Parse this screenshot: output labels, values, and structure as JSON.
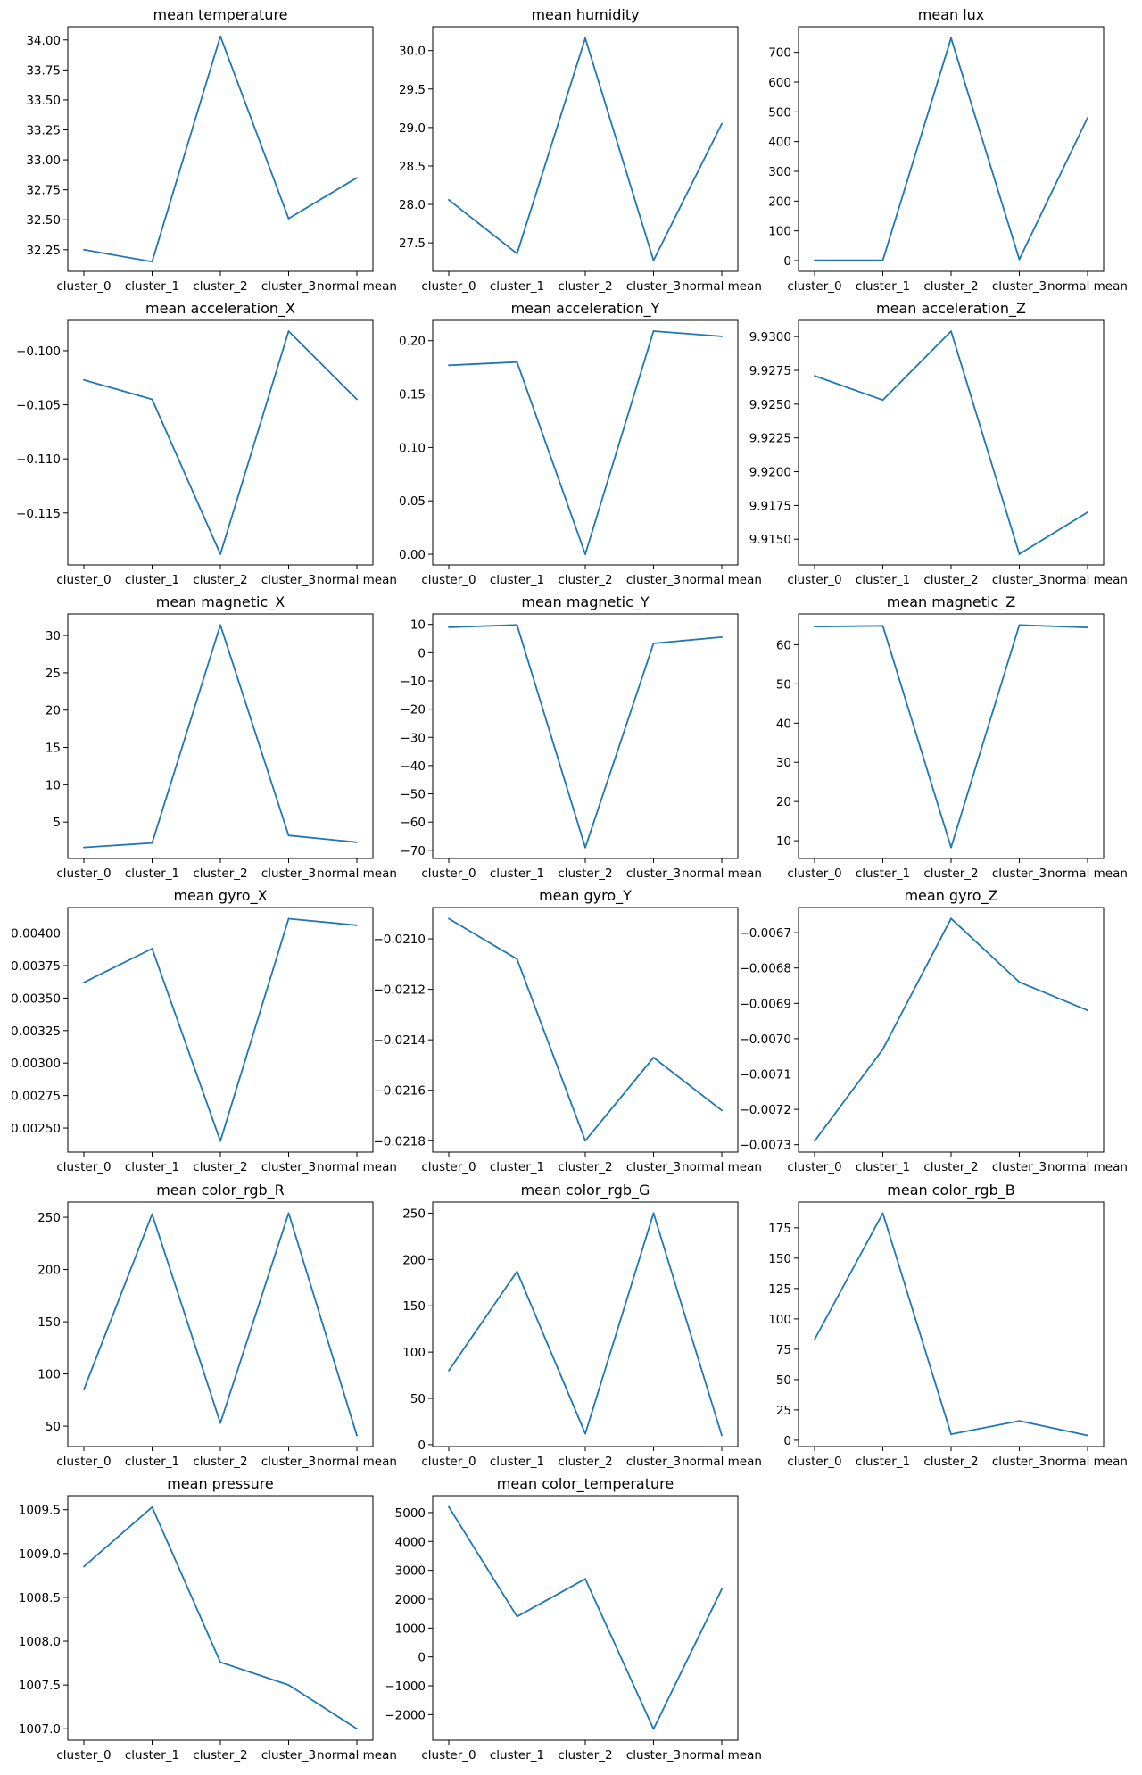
{
  "figure": {
    "line_color": "#1f77b4",
    "frame_color": "#000000",
    "background": "#ffffff"
  },
  "chart_data": [
    {
      "type": "line",
      "title": "mean temperature",
      "categories": [
        "cluster_0",
        "cluster_1",
        "cluster_2",
        "cluster_3",
        "normal mean"
      ],
      "values": [
        32.25,
        32.15,
        34.03,
        32.51,
        32.85
      ],
      "ylim": [
        32.07,
        34.11
      ],
      "yticks": [
        "32.25",
        "32.50",
        "32.75",
        "33.00",
        "33.25",
        "33.50",
        "33.75",
        "34.00"
      ],
      "xlabel": "",
      "ylabel": "",
      "grid": false
    },
    {
      "type": "line",
      "title": "mean humidity",
      "categories": [
        "cluster_0",
        "cluster_1",
        "cluster_2",
        "cluster_3",
        "normal mean"
      ],
      "values": [
        28.06,
        27.36,
        30.16,
        27.27,
        29.05
      ],
      "ylim": [
        27.13,
        30.31
      ],
      "yticks": [
        "27.5",
        "28.0",
        "28.5",
        "29.0",
        "29.5",
        "30.0"
      ],
      "xlabel": "",
      "ylabel": "",
      "grid": false
    },
    {
      "type": "line",
      "title": "mean lux",
      "categories": [
        "cluster_0",
        "cluster_1",
        "cluster_2",
        "cluster_3",
        "normal mean"
      ],
      "values": [
        1,
        1,
        748,
        4,
        480
      ],
      "ylim": [
        -36,
        786
      ],
      "yticks": [
        "0",
        "100",
        "200",
        "300",
        "400",
        "500",
        "600",
        "700"
      ],
      "xlabel": "",
      "ylabel": "",
      "grid": false
    },
    {
      "type": "line",
      "title": "mean acceleration_X",
      "categories": [
        "cluster_0",
        "cluster_1",
        "cluster_2",
        "cluster_3",
        "normal mean"
      ],
      "values": [
        -0.1027,
        -0.1045,
        -0.1188,
        -0.0982,
        -0.1045
      ],
      "ylim": [
        -0.1198,
        -0.0972
      ],
      "yticks": [
        "-0.100",
        "-0.105",
        "-0.110",
        "-0.115"
      ],
      "xlabel": "",
      "ylabel": "",
      "grid": false
    },
    {
      "type": "line",
      "title": "mean acceleration_Y",
      "categories": [
        "cluster_0",
        "cluster_1",
        "cluster_2",
        "cluster_3",
        "normal mean"
      ],
      "values": [
        0.177,
        0.18,
        0.0,
        0.209,
        0.204
      ],
      "ylim": [
        -0.01,
        0.219
      ],
      "yticks": [
        "0.00",
        "0.05",
        "0.10",
        "0.15",
        "0.20"
      ],
      "xlabel": "",
      "ylabel": "",
      "grid": false
    },
    {
      "type": "line",
      "title": "mean acceleration_Z",
      "categories": [
        "cluster_0",
        "cluster_1",
        "cluster_2",
        "cluster_3",
        "normal mean"
      ],
      "values": [
        9.9271,
        9.9253,
        9.9304,
        9.9139,
        9.917
      ],
      "ylim": [
        9.9131,
        9.9312
      ],
      "yticks": [
        "9.9150",
        "9.9175",
        "9.9200",
        "9.9225",
        "9.9250",
        "9.9275",
        "9.9300"
      ],
      "xlabel": "",
      "ylabel": "",
      "grid": false
    },
    {
      "type": "line",
      "title": "mean magnetic_X",
      "categories": [
        "cluster_0",
        "cluster_1",
        "cluster_2",
        "cluster_3",
        "normal mean"
      ],
      "values": [
        1.6,
        2.2,
        31.4,
        3.2,
        2.3
      ],
      "ylim": [
        0.12,
        32.88
      ],
      "yticks": [
        "5",
        "10",
        "15",
        "20",
        "25",
        "30"
      ],
      "xlabel": "",
      "ylabel": "",
      "grid": false
    },
    {
      "type": "line",
      "title": "mean magnetic_Y",
      "categories": [
        "cluster_0",
        "cluster_1",
        "cluster_2",
        "cluster_3",
        "normal mean"
      ],
      "values": [
        9,
        9.8,
        -69,
        3.3,
        5.5
      ],
      "ylim": [
        -72.9,
        13.7
      ],
      "yticks": [
        "10",
        "0",
        "-10",
        "-20",
        "-30",
        "-40",
        "-50",
        "-60",
        "-70"
      ],
      "xlabel": "",
      "ylabel": "",
      "grid": false
    },
    {
      "type": "line",
      "title": "mean magnetic_Z",
      "categories": [
        "cluster_0",
        "cluster_1",
        "cluster_2",
        "cluster_3",
        "normal mean"
      ],
      "values": [
        64.6,
        64.8,
        8.3,
        65,
        64.4
      ],
      "ylim": [
        5.47,
        67.83
      ],
      "yticks": [
        "10",
        "20",
        "30",
        "40",
        "50",
        "60"
      ],
      "xlabel": "",
      "ylabel": "",
      "grid": false
    },
    {
      "type": "line",
      "title": "mean gyro_X",
      "categories": [
        "cluster_0",
        "cluster_1",
        "cluster_2",
        "cluster_3",
        "normal mean"
      ],
      "values": [
        0.00362,
        0.00388,
        0.0024,
        0.00411,
        0.00406
      ],
      "ylim": [
        0.002315,
        0.004196
      ],
      "yticks": [
        "0.00400",
        "0.00375",
        "0.00350",
        "0.00325",
        "0.00300",
        "0.00275",
        "0.00250"
      ],
      "xlabel": "",
      "ylabel": "",
      "grid": false
    },
    {
      "type": "line",
      "title": "mean gyro_Y",
      "categories": [
        "cluster_0",
        "cluster_1",
        "cluster_2",
        "cluster_3",
        "normal mean"
      ],
      "values": [
        -0.02092,
        -0.02108,
        -0.0218,
        -0.02147,
        -0.02168
      ],
      "ylim": [
        -0.021845,
        -0.020876
      ],
      "yticks": [
        "-0.0210",
        "-0.0212",
        "-0.0214",
        "-0.0216",
        "-0.0218"
      ],
      "xlabel": "",
      "ylabel": "",
      "grid": false
    },
    {
      "type": "line",
      "title": "mean gyro_Z",
      "categories": [
        "cluster_0",
        "cluster_1",
        "cluster_2",
        "cluster_3",
        "normal mean"
      ],
      "values": [
        -0.00729,
        -0.00703,
        -0.00666,
        -0.00684,
        -0.00692
      ],
      "ylim": [
        -0.007321,
        -0.006629
      ],
      "yticks": [
        "-0.0067",
        "-0.0068",
        "-0.0069",
        "-0.0070",
        "-0.0071",
        "-0.0072",
        "-0.0073"
      ],
      "xlabel": "",
      "ylabel": "",
      "grid": false
    },
    {
      "type": "line",
      "title": "mean color_rgb_R",
      "categories": [
        "cluster_0",
        "cluster_1",
        "cluster_2",
        "cluster_3",
        "normal mean"
      ],
      "values": [
        85,
        253,
        53,
        254,
        41
      ],
      "ylim": [
        30.4,
        264.6
      ],
      "yticks": [
        "50",
        "100",
        "150",
        "200",
        "250"
      ],
      "xlabel": "",
      "ylabel": "",
      "grid": false
    },
    {
      "type": "line",
      "title": "mean color_rgb_G",
      "categories": [
        "cluster_0",
        "cluster_1",
        "cluster_2",
        "cluster_3",
        "normal mean"
      ],
      "values": [
        80,
        187,
        12,
        250,
        10
      ],
      "ylim": [
        -2,
        262
      ],
      "yticks": [
        "0",
        "50",
        "100",
        "150",
        "200",
        "250"
      ],
      "xlabel": "",
      "ylabel": "",
      "grid": false
    },
    {
      "type": "line",
      "title": "mean color_rgb_B",
      "categories": [
        "cluster_0",
        "cluster_1",
        "cluster_2",
        "cluster_3",
        "normal mean"
      ],
      "values": [
        83,
        187,
        5,
        16,
        4
      ],
      "ylim": [
        -5.2,
        196.2
      ],
      "yticks": [
        "0",
        "25",
        "50",
        "75",
        "100",
        "125",
        "150",
        "175"
      ],
      "xlabel": "",
      "ylabel": "",
      "grid": false
    },
    {
      "type": "line",
      "title": "mean pressure",
      "categories": [
        "cluster_0",
        "cluster_1",
        "cluster_2",
        "cluster_3",
        "normal mean"
      ],
      "values": [
        1008.85,
        1009.53,
        1007.76,
        1007.5,
        1007.0
      ],
      "ylim": [
        1006.87,
        1009.66
      ],
      "yticks": [
        "1007.0",
        "1007.5",
        "1008.0",
        "1008.5",
        "1009.0",
        "1009.5"
      ],
      "xlabel": "",
      "ylabel": "",
      "grid": false
    },
    {
      "type": "line",
      "title": "mean color_temperature",
      "categories": [
        "cluster_0",
        "cluster_1",
        "cluster_2",
        "cluster_3",
        "normal mean"
      ],
      "values": [
        5200,
        1400,
        2700,
        -2500,
        2350
      ],
      "ylim": [
        -2885,
        5585
      ],
      "yticks": [
        "5000",
        "4000",
        "3000",
        "2000",
        "1000",
        "0",
        "-1000",
        "-2000"
      ],
      "xlabel": "",
      "ylabel": "",
      "grid": false
    }
  ]
}
